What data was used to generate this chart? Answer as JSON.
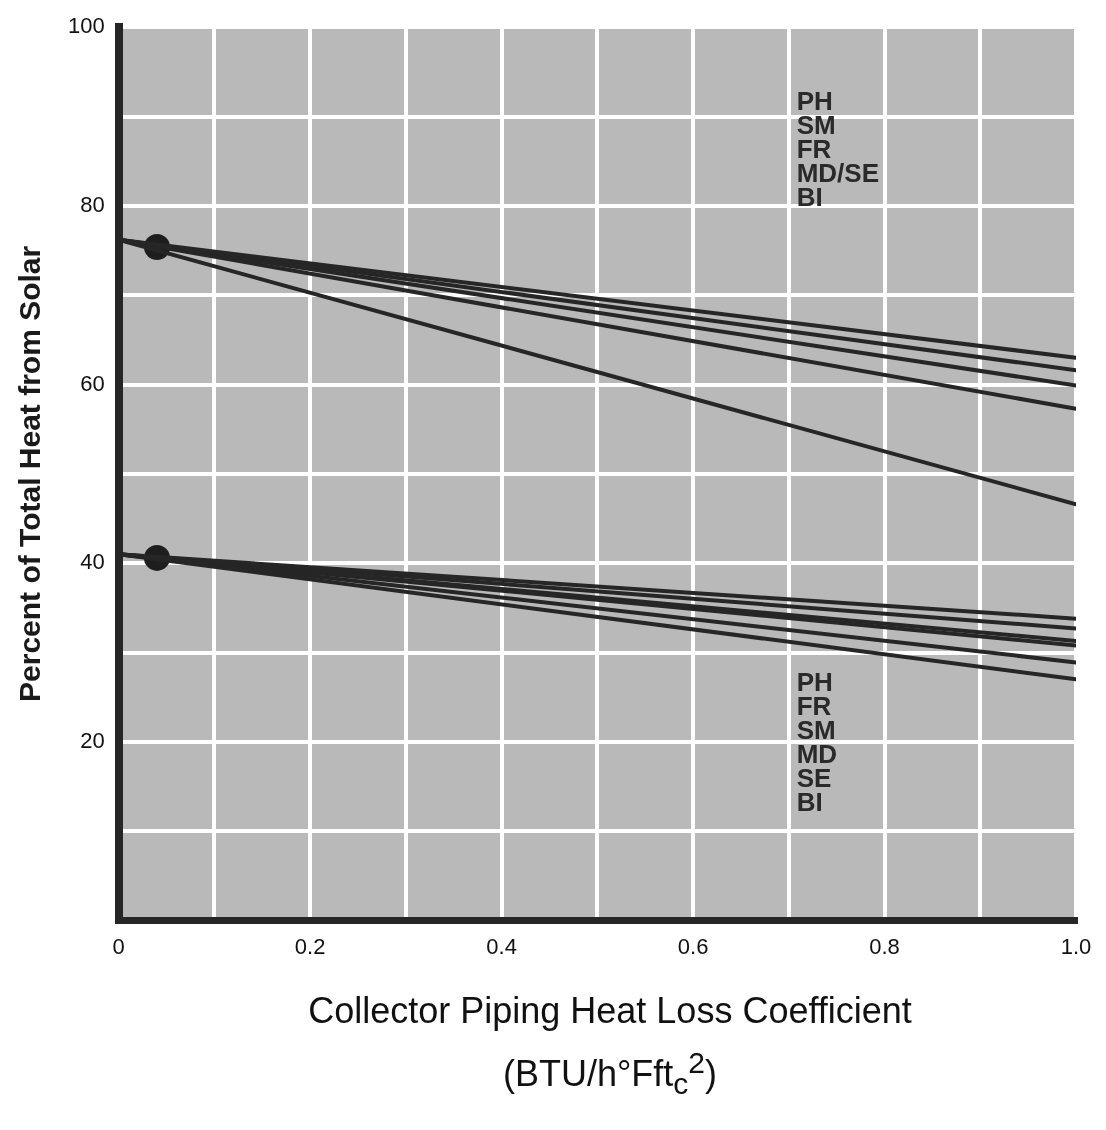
{
  "chart_data": {
    "type": "line",
    "xlabel": "Collector Piping Heat Loss Coefficient\n(BTU/h°Fft$_{c}$$^{2}$)",
    "ylabel": "Percent of Total Heat from Solar",
    "annotations": [
      "PH\nSM\nFR\nMD/SE\nBI",
      "PH\nFR\nSM\nMD\nSE\nBI"
    ],
    "xlim": [
      0,
      1.0
    ],
    "xticks": [
      0,
      {
        "value": 0.1,
        "label": null
      },
      0.2,
      {
        "value": 0.3,
        "label": null
      },
      0.4,
      {
        "value": 0.5,
        "label": null
      },
      0.6,
      {
        "value": 0.7,
        "label": null
      },
      0.8,
      {
        "value": 0.9,
        "label": null
      },
      {
        "value": 1.0,
        "label": "1.0"
      }
    ],
    "ylim": [
      0,
      100
    ],
    "yticks": [
      {
        "value": 0,
        "label": null
      },
      {
        "value": 10,
        "label": null
      },
      20,
      {
        "value": 30,
        "label": null
      },
      40,
      {
        "value": 50,
        "label": null
      },
      60,
      {
        "value": 70,
        "label": null
      },
      80,
      {
        "value": 90,
        "label": null
      },
      100
    ],
    "grid": true,
    "legend": false,
    "marker": "none",
    "line_style": "solid",
    "series": [
      {
        "color": "#262626",
        "x": [
          0,
          1.0
        ],
        "values": [
          76.2,
          63.0
        ]
      },
      {
        "color": "#262626",
        "x": [
          0,
          1.0
        ],
        "values": [
          76.2,
          61.6
        ]
      },
      {
        "color": "#262626",
        "x": [
          0,
          1.0
        ],
        "values": [
          76.2,
          59.9
        ]
      },
      {
        "color": "#262626",
        "x": [
          0,
          1.0
        ],
        "values": [
          76.2,
          57.3
        ]
      },
      {
        "color": "#262626",
        "x": [
          0,
          1.0
        ],
        "values": [
          76.2,
          46.6
        ]
      },
      {
        "color": "#262626",
        "x": [
          0,
          1.0
        ],
        "values": [
          41.0,
          33.8
        ]
      },
      {
        "color": "#262626",
        "x": [
          0,
          1.0
        ],
        "values": [
          41.0,
          32.7
        ]
      },
      {
        "color": "#262626",
        "x": [
          0,
          1.0
        ],
        "values": [
          41.0,
          31.3
        ]
      },
      {
        "color": "#262626",
        "x": [
          0,
          1.0
        ],
        "values": [
          41.0,
          30.8
        ]
      },
      {
        "color": "#262626",
        "x": [
          0,
          1.0
        ],
        "values": [
          41.0,
          28.9
        ]
      },
      {
        "color": "#262626",
        "x": [
          0,
          1.0
        ],
        "values": [
          41.0,
          27.0
        ]
      },
      {
        "type": "scatter",
        "color": "#1e1e1e",
        "marker": "circle",
        "x": [
          0.04,
          0.04
        ],
        "values": [
          75.4,
          40.6
        ]
      }
    ]
  }
}
